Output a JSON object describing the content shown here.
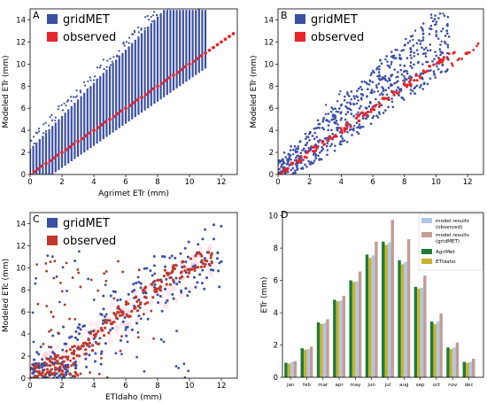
{
  "figure": {
    "panels_letters": [
      "A",
      "B",
      "C",
      "D"
    ]
  },
  "chart_data": [
    {
      "panel": "A",
      "type": "scatter",
      "xlabel": "Agrimet ETr (mm)",
      "ylabel": "Modeled ETr (mm)",
      "xlim": [
        0,
        13
      ],
      "ylim": [
        0,
        15
      ],
      "xticks": [
        "0",
        "2",
        "4",
        "6",
        "8",
        "10",
        "12"
      ],
      "yticks": [
        "0",
        "2",
        "4",
        "6",
        "8",
        "10",
        "12",
        "14"
      ],
      "legend": {
        "placement": "top-left"
      },
      "series": [
        {
          "name": "gridMET",
          "color": "#3b4fa3",
          "x_grid": [
            0.0,
            0.2,
            0.4,
            0.6,
            0.8,
            1.0,
            1.2,
            1.4,
            1.6,
            1.8,
            2.0,
            2.2,
            2.4,
            2.6,
            2.8,
            3.0,
            3.2,
            3.4,
            3.6,
            3.8,
            4.0,
            4.2,
            4.4,
            4.6,
            4.8,
            5.0,
            5.2,
            5.4,
            5.6,
            5.8,
            6.0,
            6.2,
            6.4,
            6.6,
            6.8,
            7.0,
            7.2,
            7.4,
            7.6,
            7.8,
            8.0,
            8.2,
            8.4,
            8.6,
            8.8,
            9.0,
            9.2,
            9.4,
            9.6,
            9.8,
            10.0,
            10.2,
            10.4,
            10.6,
            10.8,
            11.0
          ],
          "y_min": [
            0.0,
            0.0,
            0.0,
            0.0,
            0.0,
            0.0,
            0.0,
            0.0,
            0.2,
            0.4,
            0.6,
            0.8,
            1.0,
            1.2,
            1.4,
            1.6,
            1.8,
            2.0,
            2.2,
            2.4,
            2.6,
            2.8,
            3.0,
            3.2,
            3.4,
            3.6,
            3.8,
            4.0,
            4.2,
            4.4,
            4.6,
            4.8,
            5.0,
            5.2,
            5.4,
            5.6,
            5.8,
            6.0,
            6.2,
            6.4,
            6.6,
            6.8,
            7.0,
            7.2,
            7.4,
            7.6,
            7.8,
            8.0,
            8.2,
            8.4,
            8.6,
            8.8,
            9.0,
            9.2,
            9.4,
            9.6
          ],
          "y_max": [
            2.3,
            2.6,
            2.9,
            3.2,
            3.5,
            3.8,
            4.1,
            4.4,
            4.7,
            5.0,
            5.3,
            5.6,
            5.9,
            6.2,
            6.5,
            6.8,
            7.1,
            7.4,
            7.7,
            8.0,
            8.3,
            8.6,
            8.9,
            9.2,
            9.5,
            9.8,
            10.1,
            10.4,
            10.7,
            11.0,
            11.3,
            11.6,
            11.9,
            12.2,
            12.5,
            12.8,
            13.1,
            13.4,
            13.7,
            14.0,
            14.3,
            14.6,
            14.9,
            14.9,
            14.9,
            14.9,
            14.9,
            14.9,
            14.9,
            14.9,
            14.9,
            14.9,
            14.9,
            14.9,
            14.9,
            14.9
          ]
        },
        {
          "name": "observed",
          "color": "#e8252c",
          "x": [
            0.0,
            0.5,
            1.0,
            1.5,
            2.0,
            2.5,
            3.0,
            3.5,
            4.0,
            4.5,
            5.0,
            5.5,
            6.0,
            6.5,
            7.0,
            7.5,
            8.0,
            8.5,
            9.0,
            9.5,
            10.0,
            10.5,
            11.0,
            11.5,
            12.0,
            12.5
          ],
          "y": [
            0.0,
            0.5,
            1.0,
            1.5,
            2.0,
            2.5,
            3.0,
            3.5,
            4.0,
            4.5,
            5.0,
            5.5,
            6.0,
            6.5,
            7.0,
            7.5,
            8.0,
            8.5,
            9.0,
            9.5,
            10.0,
            10.5,
            11.0,
            11.5,
            12.0,
            12.5
          ]
        }
      ]
    },
    {
      "panel": "B",
      "type": "scatter",
      "xlabel": "",
      "ylabel": "Modeled ETr (mm)",
      "xlim": [
        0,
        13
      ],
      "ylim": [
        0,
        15
      ],
      "xticks": [
        "0",
        "2",
        "4",
        "6",
        "8",
        "10",
        "12"
      ],
      "yticks": [
        "0",
        "2",
        "4",
        "6",
        "8",
        "10",
        "12",
        "14"
      ],
      "legend": {
        "placement": "top-left"
      },
      "series": [
        {
          "name": "gridMET",
          "color": "#3b4fa3",
          "x": [
            0.2,
            0.6,
            1.0,
            1.4,
            1.8,
            2.2,
            2.6,
            3.0,
            3.4,
            3.8,
            4.2,
            4.6,
            5.0,
            5.4,
            5.8,
            6.2,
            6.6,
            7.0,
            7.4,
            7.8,
            8.2,
            8.6,
            9.0,
            9.4,
            9.8,
            10.2,
            10.6
          ],
          "y_min": [
            0.0,
            0.0,
            0.0,
            0.3,
            0.6,
            0.9,
            1.3,
            1.7,
            2.1,
            2.5,
            2.9,
            3.3,
            3.7,
            4.1,
            4.5,
            4.9,
            5.3,
            5.7,
            6.1,
            6.5,
            6.9,
            7.3,
            7.7,
            8.1,
            8.5,
            8.9,
            9.3
          ],
          "y_max": [
            1.4,
            2.0,
            2.6,
            3.2,
            3.8,
            4.4,
            5.0,
            5.5,
            6.1,
            6.6,
            7.2,
            7.8,
            8.3,
            8.9,
            9.4,
            10.0,
            10.5,
            11.0,
            11.5,
            12.0,
            12.5,
            13.0,
            13.5,
            14.0,
            14.5,
            14.8,
            14.9
          ]
        },
        {
          "name": "observed",
          "color": "#e8252c",
          "x": [
            0.0,
            0.5,
            1.0,
            1.5,
            2.0,
            2.5,
            3.0,
            3.5,
            4.0,
            4.5,
            5.0,
            5.5,
            6.0,
            6.5,
            7.0,
            7.5,
            8.0,
            8.5,
            9.0,
            9.5,
            10.0,
            10.5,
            11.0,
            11.5,
            12.0,
            12.5
          ],
          "y": [
            0.0,
            0.5,
            1.0,
            1.5,
            2.0,
            2.5,
            3.0,
            3.5,
            4.0,
            4.5,
            5.0,
            5.5,
            6.0,
            6.5,
            7.0,
            7.5,
            8.0,
            8.5,
            9.0,
            9.5,
            10.0,
            10.5,
            11.0,
            11.5,
            12.0,
            12.5
          ]
        }
      ]
    },
    {
      "panel": "C",
      "type": "scatter",
      "xlabel": "ETIdaho (mm)",
      "ylabel": "Modeled ETc (mm)",
      "xlim": [
        0,
        13
      ],
      "ylim": [
        0,
        15
      ],
      "xticks": [
        "0",
        "2",
        "4",
        "6",
        "8",
        "10",
        "12"
      ],
      "yticks": [
        "0",
        "2",
        "4",
        "6",
        "8",
        "10",
        "12",
        "14"
      ],
      "legend": {
        "placement": "top-left"
      },
      "series": [
        {
          "name": "gridMET",
          "color": "#3b4fa3",
          "x": [
            0.3,
            0.8,
            1.3,
            1.8,
            2.3,
            2.8,
            3.3,
            3.8,
            4.3,
            4.8,
            5.3,
            5.8,
            6.3,
            6.8,
            7.3,
            7.8,
            8.3,
            8.8,
            9.3,
            9.8,
            10.3,
            10.8,
            11.3,
            11.8
          ],
          "y": [
            0.6,
            0.9,
            1.1,
            1.6,
            1.9,
            2.5,
            2.9,
            3.4,
            4.2,
            4.6,
            5.3,
            5.9,
            6.4,
            7.1,
            7.7,
            8.2,
            8.9,
            9.3,
            9.8,
            10.2,
            10.6,
            10.9,
            11.1,
            11.3
          ]
        },
        {
          "name": "observed",
          "color": "#c0392b",
          "x": [
            0.2,
            0.7,
            1.2,
            1.7,
            2.2,
            2.7,
            3.2,
            3.7,
            4.2,
            4.7,
            5.2,
            5.7,
            6.2,
            6.7,
            7.2,
            7.7,
            8.2,
            8.7,
            9.2,
            9.7,
            10.2,
            10.7,
            11.2
          ],
          "y": [
            0.5,
            0.7,
            1.0,
            1.3,
            1.7,
            2.2,
            2.7,
            3.3,
            3.9,
            4.5,
            5.1,
            5.7,
            6.3,
            6.9,
            7.5,
            8.1,
            8.6,
            9.1,
            9.5,
            9.9,
            10.3,
            10.6,
            10.9
          ]
        }
      ]
    },
    {
      "panel": "D",
      "type": "bar",
      "xlabel": "",
      "ylabel": "ETr (mm)",
      "ylim": [
        0,
        10.2
      ],
      "yticks": [
        "0",
        "2",
        "4",
        "6",
        "8",
        "10"
      ],
      "categories": [
        "jan",
        "feb",
        "mar",
        "apr",
        "may",
        "jun",
        "jul",
        "aug",
        "sep",
        "oct",
        "nov",
        "dec"
      ],
      "legend": {
        "placement": "top-right"
      },
      "series": [
        {
          "name": "model results\n(observed)",
          "color": "#aec7e8",
          "values": [
            0.95,
            1.75,
            3.35,
            4.75,
            5.95,
            7.55,
            8.35,
            7.15,
            5.55,
            3.45,
            1.85,
            0.95
          ]
        },
        {
          "name": "model results\n(gridMET)",
          "color": "#c49c94",
          "values": [
            1.0,
            1.9,
            3.6,
            5.05,
            6.55,
            8.4,
            9.75,
            8.55,
            6.3,
            3.95,
            2.15,
            1.15
          ]
        },
        {
          "name": "AgriMet",
          "color": "#1e7b3a",
          "values": [
            0.9,
            1.8,
            3.4,
            4.8,
            6.0,
            7.6,
            8.4,
            7.25,
            5.6,
            3.45,
            1.85,
            0.95
          ]
        },
        {
          "name": "ETIdaho",
          "color": "#c9b22b",
          "values": [
            0.85,
            1.7,
            3.3,
            4.7,
            5.9,
            7.4,
            8.2,
            7.0,
            5.5,
            3.3,
            1.75,
            0.9
          ]
        }
      ]
    }
  ]
}
